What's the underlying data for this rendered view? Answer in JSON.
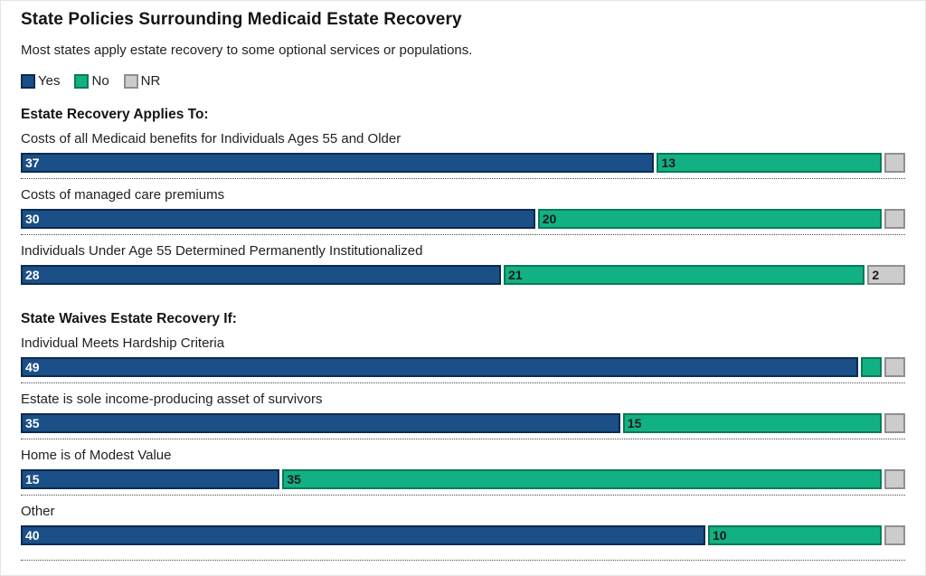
{
  "chart_data": {
    "type": "bar",
    "orientation": "horizontal",
    "stacked": true,
    "title": "State Policies Surrounding Medicaid Estate Recovery",
    "subtitle": "Most states apply estate recovery to some optional services or populations.",
    "total_per_bar": 51,
    "legend": [
      {
        "key": "yes",
        "label": "Yes"
      },
      {
        "key": "no",
        "label": "No"
      },
      {
        "key": "nr",
        "label": "NR"
      }
    ],
    "colors": {
      "yes": {
        "fill": "#1a4f87",
        "border": "#0d2b4d",
        "text": "#ffffff"
      },
      "no": {
        "fill": "#12b183",
        "border": "#0a7a58",
        "text": "#1a1a1a"
      },
      "nr": {
        "fill": "#cccccc",
        "border": "#8f8f8f",
        "text": "#1a1a1a"
      }
    },
    "sections": [
      {
        "header": "Estate Recovery Applies To:",
        "rows": [
          {
            "label": "Costs of all Medicaid benefits for Individuals Ages 55 and Older",
            "separator": true,
            "segments": [
              {
                "key": "yes",
                "value": 37,
                "label": "37"
              },
              {
                "key": "no",
                "value": 13,
                "label": "13"
              },
              {
                "key": "nr",
                "value": 1,
                "label": ""
              }
            ]
          },
          {
            "label": "Costs of managed care premiums",
            "separator": true,
            "segments": [
              {
                "key": "yes",
                "value": 30,
                "label": "30"
              },
              {
                "key": "no",
                "value": 20,
                "label": "20"
              },
              {
                "key": "nr",
                "value": 1,
                "label": ""
              }
            ]
          },
          {
            "label": "Individuals Under Age 55 Determined Permanently Institutionalized",
            "separator": false,
            "segments": [
              {
                "key": "yes",
                "value": 28,
                "label": "28"
              },
              {
                "key": "no",
                "value": 21,
                "label": "21"
              },
              {
                "key": "nr",
                "value": 2,
                "label": "2"
              }
            ]
          }
        ]
      },
      {
        "header": "State Waives Estate Recovery If:",
        "rows": [
          {
            "label": "Individual Meets Hardship Criteria",
            "separator": true,
            "segments": [
              {
                "key": "yes",
                "value": 49,
                "label": "49"
              },
              {
                "key": "no",
                "value": 1,
                "label": ""
              },
              {
                "key": "nr",
                "value": 1,
                "label": ""
              }
            ]
          },
          {
            "label": "Estate is sole income-producing asset of survivors",
            "separator": true,
            "segments": [
              {
                "key": "yes",
                "value": 35,
                "label": "35"
              },
              {
                "key": "no",
                "value": 15,
                "label": "15"
              },
              {
                "key": "nr",
                "value": 1,
                "label": ""
              }
            ]
          },
          {
            "label": "Home is of Modest Value",
            "separator": true,
            "segments": [
              {
                "key": "yes",
                "value": 15,
                "label": "15"
              },
              {
                "key": "no",
                "value": 35,
                "label": "35"
              },
              {
                "key": "nr",
                "value": 1,
                "label": ""
              }
            ]
          },
          {
            "label": "Other",
            "separator": true,
            "segments": [
              {
                "key": "yes",
                "value": 40,
                "label": "40"
              },
              {
                "key": "no",
                "value": 10,
                "label": "10"
              },
              {
                "key": "nr",
                "value": 1,
                "label": ""
              }
            ]
          }
        ]
      }
    ]
  }
}
